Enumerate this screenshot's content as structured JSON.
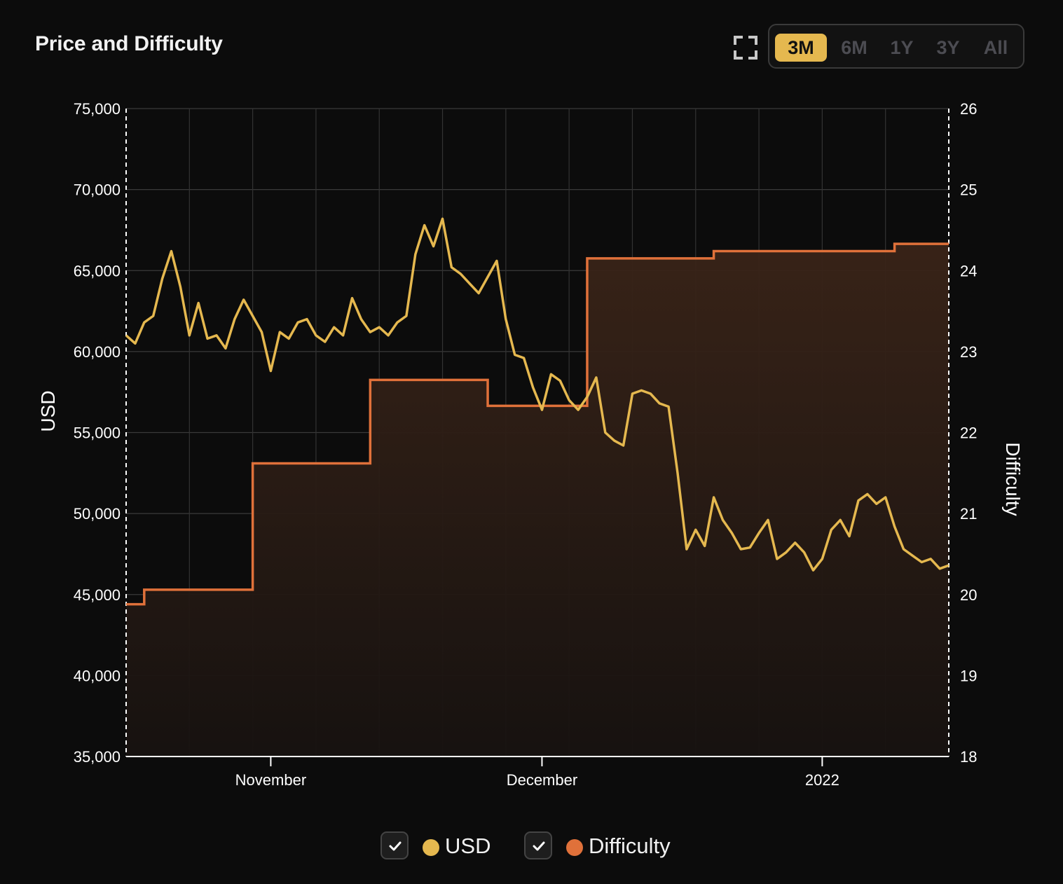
{
  "title": "Price and Difficulty",
  "toolbar": {
    "expand_icon": "expand-icon",
    "ranges": [
      {
        "label": "3M",
        "active": true
      },
      {
        "label": "6M",
        "active": false
      },
      {
        "label": "1Y",
        "active": false
      },
      {
        "label": "3Y",
        "active": false
      },
      {
        "label": "All",
        "active": false
      }
    ]
  },
  "legend": [
    {
      "label": "USD",
      "checked": true,
      "color": "#e5b84f"
    },
    {
      "label": "Difficulty",
      "checked": true,
      "color": "#e0713a"
    }
  ],
  "chart_data": {
    "type": "line",
    "x_ticks": [
      {
        "label": "November",
        "date": "2021-11-01"
      },
      {
        "label": "December",
        "date": "2021-12-01"
      },
      {
        "label": "2022",
        "date": "2022-01-01"
      }
    ],
    "xlim": [
      "2021-10-16",
      "2022-01-15"
    ],
    "y_left": {
      "label": "USD",
      "min": 35000,
      "max": 75000,
      "ticks": [
        "35,000",
        "40,000",
        "45,000",
        "50,000",
        "55,000",
        "60,000",
        "65,000",
        "70,000",
        "75,000"
      ]
    },
    "y_right": {
      "label": "Difficulty",
      "min": 18,
      "max": 26,
      "ticks": [
        "18",
        "19",
        "20",
        "21",
        "22",
        "23",
        "24",
        "25",
        "26"
      ]
    },
    "series": [
      {
        "name": "USD",
        "axis": "left",
        "color": "#e5b84f",
        "points": [
          [
            "2021-10-16",
            61000
          ],
          [
            "2021-10-17",
            60500
          ],
          [
            "2021-10-18",
            61800
          ],
          [
            "2021-10-19",
            62200
          ],
          [
            "2021-10-20",
            64500
          ],
          [
            "2021-10-21",
            66200
          ],
          [
            "2021-10-22",
            64000
          ],
          [
            "2021-10-23",
            61000
          ],
          [
            "2021-10-24",
            63000
          ],
          [
            "2021-10-25",
            60800
          ],
          [
            "2021-10-26",
            61000
          ],
          [
            "2021-10-27",
            60200
          ],
          [
            "2021-10-28",
            62000
          ],
          [
            "2021-10-29",
            63200
          ],
          [
            "2021-10-30",
            62200
          ],
          [
            "2021-10-31",
            61200
          ],
          [
            "2021-11-01",
            58800
          ],
          [
            "2021-11-02",
            61200
          ],
          [
            "2021-11-03",
            60800
          ],
          [
            "2021-11-04",
            61800
          ],
          [
            "2021-11-05",
            62000
          ],
          [
            "2021-11-06",
            61000
          ],
          [
            "2021-11-07",
            60600
          ],
          [
            "2021-11-08",
            61500
          ],
          [
            "2021-11-09",
            61000
          ],
          [
            "2021-11-10",
            63300
          ],
          [
            "2021-11-11",
            62000
          ],
          [
            "2021-11-12",
            61200
          ],
          [
            "2021-11-13",
            61500
          ],
          [
            "2021-11-14",
            61000
          ],
          [
            "2021-11-15",
            61800
          ],
          [
            "2021-11-16",
            62200
          ],
          [
            "2021-11-17",
            66000
          ],
          [
            "2021-11-18",
            67800
          ],
          [
            "2021-11-19",
            66500
          ],
          [
            "2021-11-20",
            68200
          ],
          [
            "2021-11-21",
            65200
          ],
          [
            "2021-11-22",
            64800
          ],
          [
            "2021-11-23",
            64200
          ],
          [
            "2021-11-24",
            63600
          ],
          [
            "2021-11-25",
            64600
          ],
          [
            "2021-11-26",
            65600
          ],
          [
            "2021-11-27",
            62000
          ],
          [
            "2021-11-28",
            59800
          ],
          [
            "2021-11-29",
            59600
          ],
          [
            "2021-11-30",
            57800
          ],
          [
            "2021-12-01",
            56400
          ],
          [
            "2021-12-02",
            58600
          ],
          [
            "2021-12-03",
            58200
          ],
          [
            "2021-12-04",
            57000
          ],
          [
            "2021-12-05",
            56400
          ],
          [
            "2021-12-06",
            57200
          ],
          [
            "2021-12-07",
            58400
          ],
          [
            "2021-12-08",
            55000
          ],
          [
            "2021-12-09",
            54500
          ],
          [
            "2021-12-10",
            54200
          ],
          [
            "2021-12-11",
            57400
          ],
          [
            "2021-12-12",
            57600
          ],
          [
            "2021-12-13",
            57400
          ],
          [
            "2021-12-14",
            56800
          ],
          [
            "2021-12-15",
            56600
          ],
          [
            "2021-12-16",
            52500
          ],
          [
            "2021-12-17",
            47800
          ],
          [
            "2021-12-18",
            49000
          ],
          [
            "2021-12-19",
            48000
          ],
          [
            "2021-12-20",
            51000
          ],
          [
            "2021-12-21",
            49600
          ],
          [
            "2021-12-22",
            48800
          ],
          [
            "2021-12-23",
            47800
          ],
          [
            "2021-12-24",
            47900
          ],
          [
            "2021-12-25",
            48800
          ],
          [
            "2021-12-26",
            49600
          ],
          [
            "2021-12-27",
            47200
          ],
          [
            "2021-12-28",
            47600
          ],
          [
            "2021-12-29",
            48200
          ],
          [
            "2021-12-30",
            47600
          ],
          [
            "2021-12-31",
            46500
          ],
          [
            "2022-01-01",
            47200
          ],
          [
            "2022-01-02",
            49000
          ],
          [
            "2022-01-03",
            49600
          ],
          [
            "2022-01-04",
            48600
          ],
          [
            "2022-01-05",
            50800
          ],
          [
            "2022-01-06",
            51200
          ],
          [
            "2022-01-07",
            50600
          ],
          [
            "2022-01-08",
            51000
          ],
          [
            "2022-01-09",
            49200
          ],
          [
            "2022-01-10",
            47800
          ],
          [
            "2022-01-11",
            47400
          ],
          [
            "2022-01-12",
            47000
          ],
          [
            "2022-01-13",
            47200
          ],
          [
            "2022-01-14",
            46600
          ],
          [
            "2022-01-15",
            46800
          ]
        ]
      },
      {
        "name": "Difficulty",
        "axis": "right",
        "color": "#e0713a",
        "steps": [
          [
            "2021-10-16",
            19.88
          ],
          [
            "2021-10-18",
            20.06
          ],
          [
            "2021-10-30",
            21.62
          ],
          [
            "2021-11-12",
            22.65
          ],
          [
            "2021-11-25",
            22.33
          ],
          [
            "2021-12-06",
            24.15
          ],
          [
            "2021-12-20",
            24.24
          ],
          [
            "2022-01-09",
            24.33
          ]
        ]
      }
    ],
    "grid": true,
    "legend_position": "bottom-center"
  }
}
